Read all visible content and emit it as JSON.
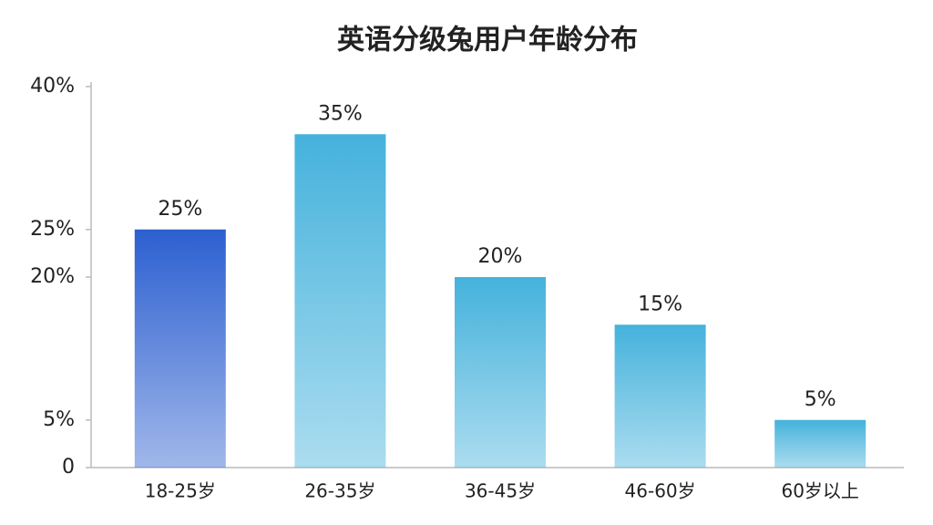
{
  "chart_data": {
    "type": "bar",
    "title": "英语分级兔用户年龄分布",
    "categories": [
      "18-25岁",
      "26-35岁",
      "36-45岁",
      "46-60岁",
      "60岁以上"
    ],
    "values": [
      25,
      35,
      20,
      15,
      5
    ],
    "value_labels": [
      "25%",
      "35%",
      "20%",
      "15%",
      "5%"
    ],
    "colors": [
      "#2c5fd0",
      "#45b2dc",
      "#45b2dc",
      "#45b2dc",
      "#45b2dc"
    ],
    "ylim": [
      0,
      40
    ],
    "yticks": [
      0,
      {
        "value": 5,
        "label": "5%"
      },
      {
        "value": 20,
        "label": "20%"
      },
      {
        "value": 25,
        "label": "25%"
      },
      {
        "value": 40,
        "label": "40%"
      }
    ],
    "grid": false
  }
}
